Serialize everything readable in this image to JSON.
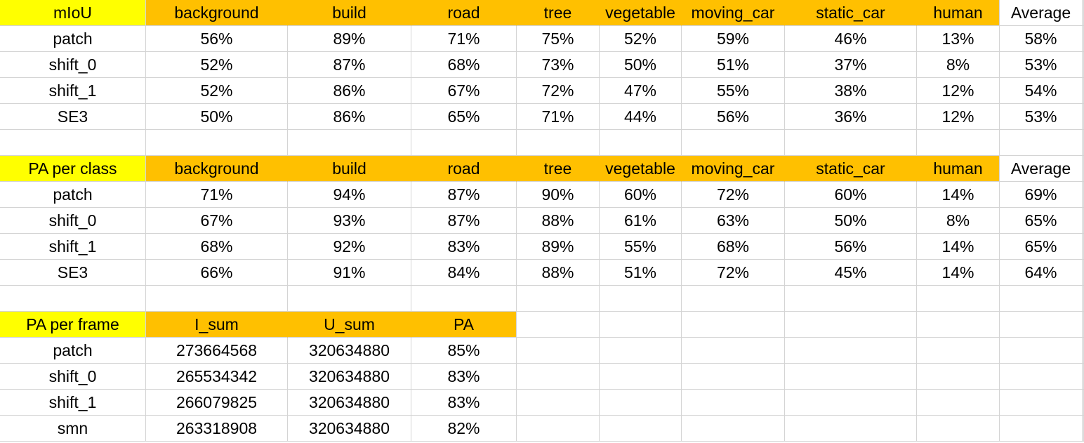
{
  "tables": [
    {
      "headers": [
        "mIoU",
        "background",
        "build",
        "road",
        "tree",
        "vegetable",
        "moving_car",
        "static_car",
        "human",
        "Average"
      ],
      "rows": [
        [
          "patch",
          "56%",
          "89%",
          "71%",
          "75%",
          "52%",
          "59%",
          "46%",
          "13%",
          "58%"
        ],
        [
          "shift_0",
          "52%",
          "87%",
          "68%",
          "73%",
          "50%",
          "51%",
          "37%",
          "8%",
          "53%"
        ],
        [
          "shift_1",
          "52%",
          "86%",
          "67%",
          "72%",
          "47%",
          "55%",
          "38%",
          "12%",
          "54%"
        ],
        [
          "SE3",
          "50%",
          "86%",
          "65%",
          "71%",
          "44%",
          "56%",
          "36%",
          "12%",
          "53%"
        ]
      ]
    },
    {
      "headers": [
        "PA per class",
        "background",
        "build",
        "road",
        "tree",
        "vegetable",
        "moving_car",
        "static_car",
        "human",
        "Average"
      ],
      "rows": [
        [
          "patch",
          "71%",
          "94%",
          "87%",
          "90%",
          "60%",
          "72%",
          "60%",
          "14%",
          "69%"
        ],
        [
          "shift_0",
          "67%",
          "93%",
          "87%",
          "88%",
          "61%",
          "63%",
          "50%",
          "8%",
          "65%"
        ],
        [
          "shift_1",
          "68%",
          "92%",
          "83%",
          "89%",
          "55%",
          "68%",
          "56%",
          "14%",
          "65%"
        ],
        [
          "SE3",
          "66%",
          "91%",
          "84%",
          "88%",
          "51%",
          "72%",
          "45%",
          "14%",
          "64%"
        ]
      ]
    },
    {
      "headers": [
        "PA per frame",
        "I_sum",
        "U_sum",
        "PA"
      ],
      "rows": [
        [
          "patch",
          "273664568",
          "320634880",
          "85%"
        ],
        [
          "shift_0",
          "265534342",
          "320634880",
          "83%"
        ],
        [
          "shift_1",
          "266079825",
          "320634880",
          "83%"
        ],
        [
          "smn",
          "263318908",
          "320634880",
          "82%"
        ]
      ]
    }
  ],
  "colors": {
    "row_label_header": "#ffff00",
    "column_header": "#ffc000",
    "gridline": "#d4d4d4"
  }
}
